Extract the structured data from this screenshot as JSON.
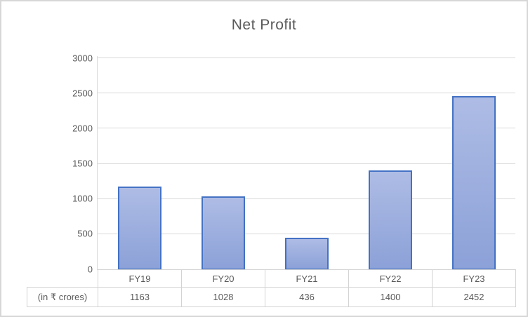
{
  "title": "Net Profit",
  "colors": {
    "bar_border": "#4472c4",
    "bar_fill_top": "#aebce5",
    "bar_fill_bottom": "#8ca1d8",
    "gridline": "#d9d9d9",
    "text": "#595959",
    "chart_border": "#d7d7d7"
  },
  "table": {
    "row_label": "(in ₹ crores)"
  },
  "chart_data": {
    "type": "bar",
    "title": "Net Profit",
    "categories": [
      "FY19",
      "FY20",
      "FY21",
      "FY22",
      "FY23"
    ],
    "values": [
      1163,
      1028,
      436,
      1400,
      2452
    ],
    "xlabel": "",
    "ylabel": "",
    "ylim": [
      0,
      3000
    ],
    "ytick_step": 500,
    "grid": true,
    "legend": false,
    "data_table": true,
    "data_table_row_label": "(in ₹ crores)"
  }
}
